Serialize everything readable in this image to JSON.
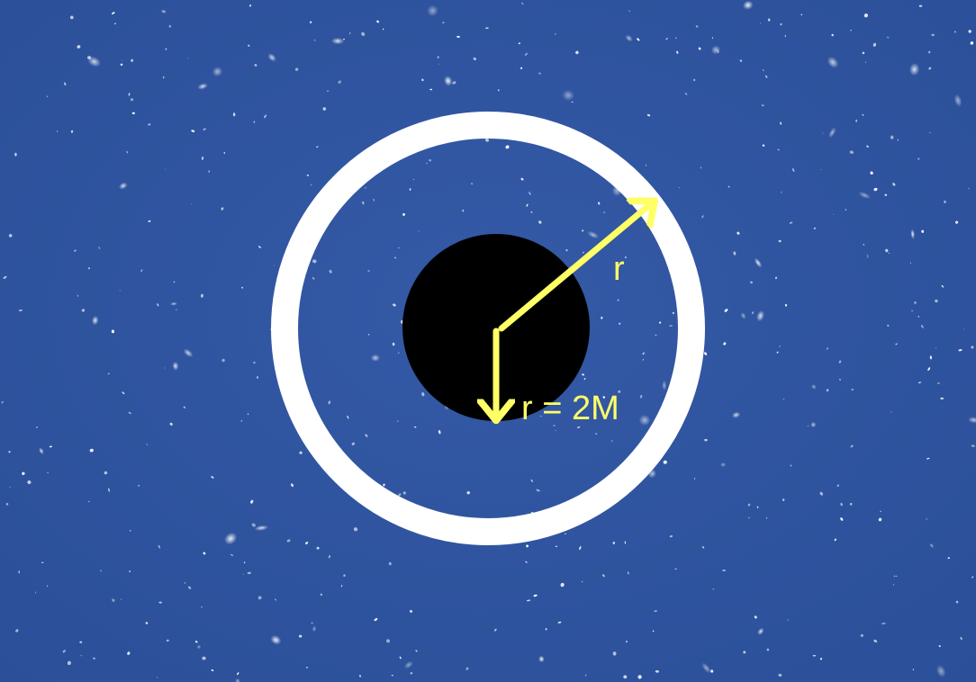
{
  "labels": {
    "outer_radius": "r",
    "horizon_radius": "r = 2M"
  },
  "colors": {
    "background": "#2f54a0",
    "star": "#f4f7ff",
    "ring": "#ffffff",
    "black_hole": "#000000",
    "arrow": "#ffff66",
    "label": "#ffff66"
  }
}
